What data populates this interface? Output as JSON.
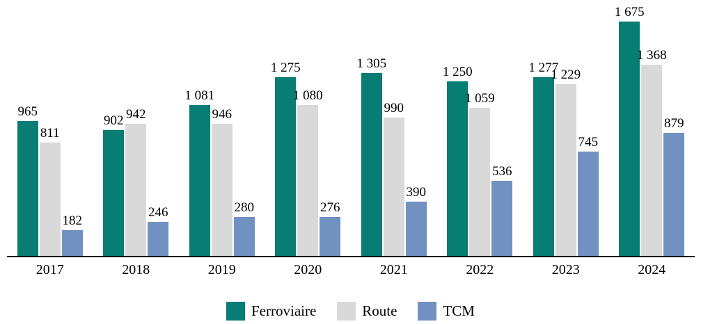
{
  "chart_data": {
    "type": "bar",
    "title": "",
    "xlabel": "",
    "ylabel": "",
    "categories": [
      "2017",
      "2018",
      "2019",
      "2020",
      "2021",
      "2022",
      "2023",
      "2024"
    ],
    "series": [
      {
        "name": "Ferroviaire",
        "color": "#087D73",
        "values": [
          965,
          902,
          1081,
          1275,
          1305,
          1250,
          1277,
          1675
        ],
        "labels": [
          "965",
          "902",
          "1 081",
          "1 275",
          "1 305",
          "1 250",
          "1 277",
          "1 675"
        ]
      },
      {
        "name": "Route",
        "color": "#D9D9D9",
        "values": [
          811,
          942,
          946,
          1080,
          990,
          1059,
          1229,
          1368
        ],
        "labels": [
          "811",
          "942",
          "946",
          "1 080",
          "990",
          "1 059",
          "1 229",
          "1 368"
        ]
      },
      {
        "name": "TCM",
        "color": "#7191C0",
        "values": [
          182,
          246,
          280,
          276,
          390,
          536,
          745,
          879
        ],
        "labels": [
          "182",
          "246",
          "280",
          "276",
          "390",
          "536",
          "745",
          "879"
        ]
      }
    ],
    "ylim": [
      0,
      1675
    ],
    "grid": false,
    "value_labels": true,
    "legend_position": "bottom",
    "axis_line_color": "#000000",
    "background_color": "#FFFFFF",
    "text_color": "#000000"
  }
}
